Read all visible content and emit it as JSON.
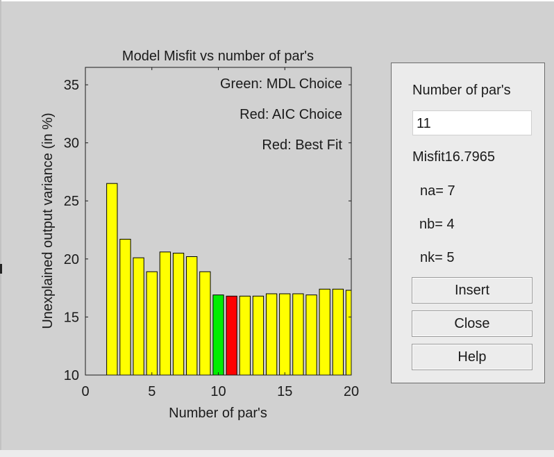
{
  "chart_data": {
    "type": "bar",
    "title": "Model Misfit vs number of par's",
    "xlabel": "Number of par's",
    "ylabel": "Unexplained output variance (in %)",
    "xlim": [
      0,
      20
    ],
    "ylim": [
      10,
      36.5
    ],
    "xticks": [
      0,
      5,
      10,
      15,
      20
    ],
    "yticks": [
      10,
      15,
      20,
      25,
      30,
      35
    ],
    "x": [
      2,
      3,
      4,
      5,
      6,
      7,
      8,
      9,
      10,
      11,
      12,
      13,
      14,
      15,
      16,
      17,
      18,
      19,
      20
    ],
    "values": [
      26.5,
      21.7,
      20.1,
      18.9,
      20.6,
      20.5,
      20.2,
      18.9,
      16.9,
      16.8,
      16.8,
      16.8,
      17.0,
      17.0,
      17.0,
      16.9,
      17.4,
      17.4,
      17.3
    ],
    "highlight": {
      "mdl_x": 10,
      "aic_x": 11
    },
    "colors": {
      "default": "#ffff00",
      "mdl": "#00ee00",
      "aic": "#ff0000",
      "outline": "#000000"
    },
    "annotations": [
      "Green: MDL Choice",
      "Red: AIC Choice",
      "Red: Best Fit"
    ],
    "grid": false
  },
  "panel": {
    "npar_label": "Number of par's",
    "npar_value": "11",
    "misfit_text": "Misfit16.7965",
    "na_text": "na= 7",
    "nb_text": "nb= 4",
    "nk_text": "nk= 5",
    "insert_label": "Insert",
    "close_label": "Close",
    "help_label": "Help"
  }
}
